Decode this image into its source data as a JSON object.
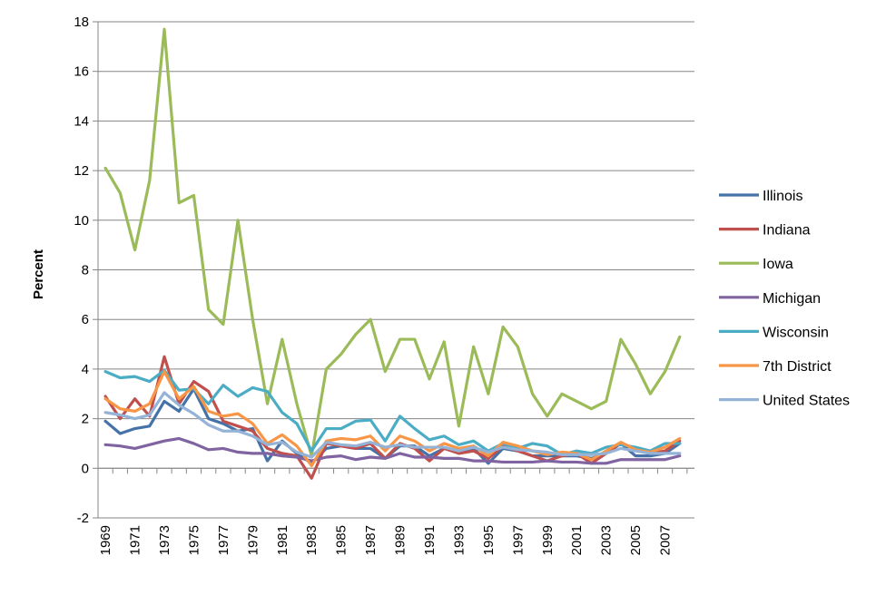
{
  "chart_data": {
    "type": "line",
    "title": "",
    "xlabel": "",
    "ylabel": "Percent",
    "ylim": [
      -2,
      18
    ],
    "yticks": [
      -2,
      0,
      2,
      4,
      6,
      8,
      10,
      12,
      14,
      16,
      18
    ],
    "x": [
      1969,
      1970,
      1971,
      1972,
      1973,
      1974,
      1975,
      1976,
      1977,
      1978,
      1979,
      1980,
      1981,
      1982,
      1983,
      1984,
      1985,
      1986,
      1987,
      1988,
      1989,
      1990,
      1991,
      1992,
      1993,
      1994,
      1995,
      1996,
      1997,
      1998,
      1999,
      2000,
      2001,
      2002,
      2003,
      2004,
      2005,
      2006,
      2007,
      2008
    ],
    "xticks": [
      1969,
      1971,
      1973,
      1975,
      1977,
      1979,
      1981,
      1983,
      1985,
      1987,
      1989,
      1991,
      1993,
      1995,
      1997,
      1999,
      2001,
      2003,
      2005,
      2007
    ],
    "grid": "horizontal",
    "legend_position": "right",
    "series": [
      {
        "name": "Illinois",
        "color": "#4572A7",
        "values": [
          1.9,
          1.4,
          1.6,
          1.7,
          2.7,
          2.3,
          3.2,
          2.0,
          1.8,
          1.5,
          1.6,
          0.3,
          1.1,
          0.6,
          0.2,
          0.8,
          0.9,
          0.8,
          0.8,
          0.4,
          0.9,
          0.9,
          0.5,
          0.8,
          0.7,
          0.8,
          0.2,
          0.8,
          0.7,
          0.5,
          0.5,
          0.5,
          0.5,
          0.4,
          0.6,
          1.0,
          0.5,
          0.5,
          0.6,
          1.0
        ]
      },
      {
        "name": "Indiana",
        "color": "#C0504D",
        "values": [
          2.9,
          2.0,
          2.8,
          2.1,
          4.5,
          2.6,
          3.5,
          3.1,
          1.9,
          1.7,
          1.5,
          0.8,
          0.6,
          0.5,
          -0.4,
          1.0,
          0.9,
          0.8,
          1.0,
          0.4,
          1.0,
          0.8,
          0.3,
          0.8,
          0.6,
          0.7,
          0.4,
          0.9,
          0.7,
          0.5,
          0.3,
          0.5,
          0.6,
          0.2,
          0.6,
          1.0,
          0.8,
          0.6,
          0.7,
          1.1
        ]
      },
      {
        "name": "Iowa",
        "color": "#9BBB59",
        "values": [
          12.1,
          11.1,
          8.8,
          11.6,
          17.7,
          10.7,
          11.0,
          6.4,
          5.8,
          10.0,
          6.0,
          2.6,
          5.2,
          2.6,
          0.5,
          4.0,
          4.6,
          5.4,
          6.0,
          3.9,
          5.2,
          5.2,
          3.6,
          5.1,
          1.7,
          4.9,
          3.0,
          5.7,
          4.9,
          3.0,
          2.1,
          3.0,
          2.7,
          2.4,
          2.7,
          5.2,
          4.2,
          3.0,
          3.9,
          5.3
        ]
      },
      {
        "name": "Michigan",
        "color": "#8064A2",
        "values": [
          0.95,
          0.9,
          0.8,
          0.95,
          1.1,
          1.2,
          1.0,
          0.75,
          0.8,
          0.65,
          0.6,
          0.6,
          0.5,
          0.45,
          0.3,
          0.45,
          0.5,
          0.35,
          0.45,
          0.4,
          0.6,
          0.45,
          0.45,
          0.4,
          0.4,
          0.3,
          0.3,
          0.25,
          0.25,
          0.25,
          0.3,
          0.25,
          0.25,
          0.2,
          0.2,
          0.35,
          0.35,
          0.35,
          0.35,
          0.5
        ]
      },
      {
        "name": "Wisconsin",
        "color": "#4BACC6",
        "values": [
          3.9,
          3.65,
          3.7,
          3.5,
          3.95,
          3.15,
          3.2,
          2.6,
          3.35,
          2.9,
          3.25,
          3.1,
          2.25,
          1.8,
          0.7,
          1.6,
          1.6,
          1.9,
          1.95,
          1.1,
          2.1,
          1.6,
          1.15,
          1.3,
          0.95,
          1.1,
          0.7,
          1.0,
          0.8,
          1.0,
          0.9,
          0.55,
          0.7,
          0.6,
          0.85,
          0.95,
          0.85,
          0.7,
          1.0,
          1.0
        ]
      },
      {
        "name": "7th District",
        "color": "#F79646",
        "values": [
          2.8,
          2.4,
          2.3,
          2.6,
          3.9,
          2.8,
          3.3,
          2.3,
          2.1,
          2.2,
          1.8,
          1.0,
          1.35,
          0.9,
          0.1,
          1.1,
          1.2,
          1.15,
          1.3,
          0.7,
          1.3,
          1.1,
          0.7,
          1.0,
          0.8,
          0.9,
          0.5,
          1.05,
          0.9,
          0.7,
          0.55,
          0.65,
          0.6,
          0.35,
          0.7,
          1.05,
          0.75,
          0.65,
          0.85,
          1.2
        ]
      },
      {
        "name": "United States",
        "color": "#95B3D7",
        "values": [
          2.25,
          2.15,
          2.0,
          2.15,
          3.05,
          2.55,
          2.2,
          1.75,
          1.5,
          1.5,
          1.3,
          0.95,
          1.05,
          0.65,
          0.45,
          1.05,
          0.95,
          0.9,
          1.05,
          0.85,
          0.95,
          0.85,
          0.85,
          0.85,
          0.7,
          0.85,
          0.65,
          0.85,
          0.75,
          0.7,
          0.65,
          0.55,
          0.55,
          0.55,
          0.6,
          0.8,
          0.7,
          0.6,
          0.6,
          0.6
        ]
      }
    ]
  }
}
